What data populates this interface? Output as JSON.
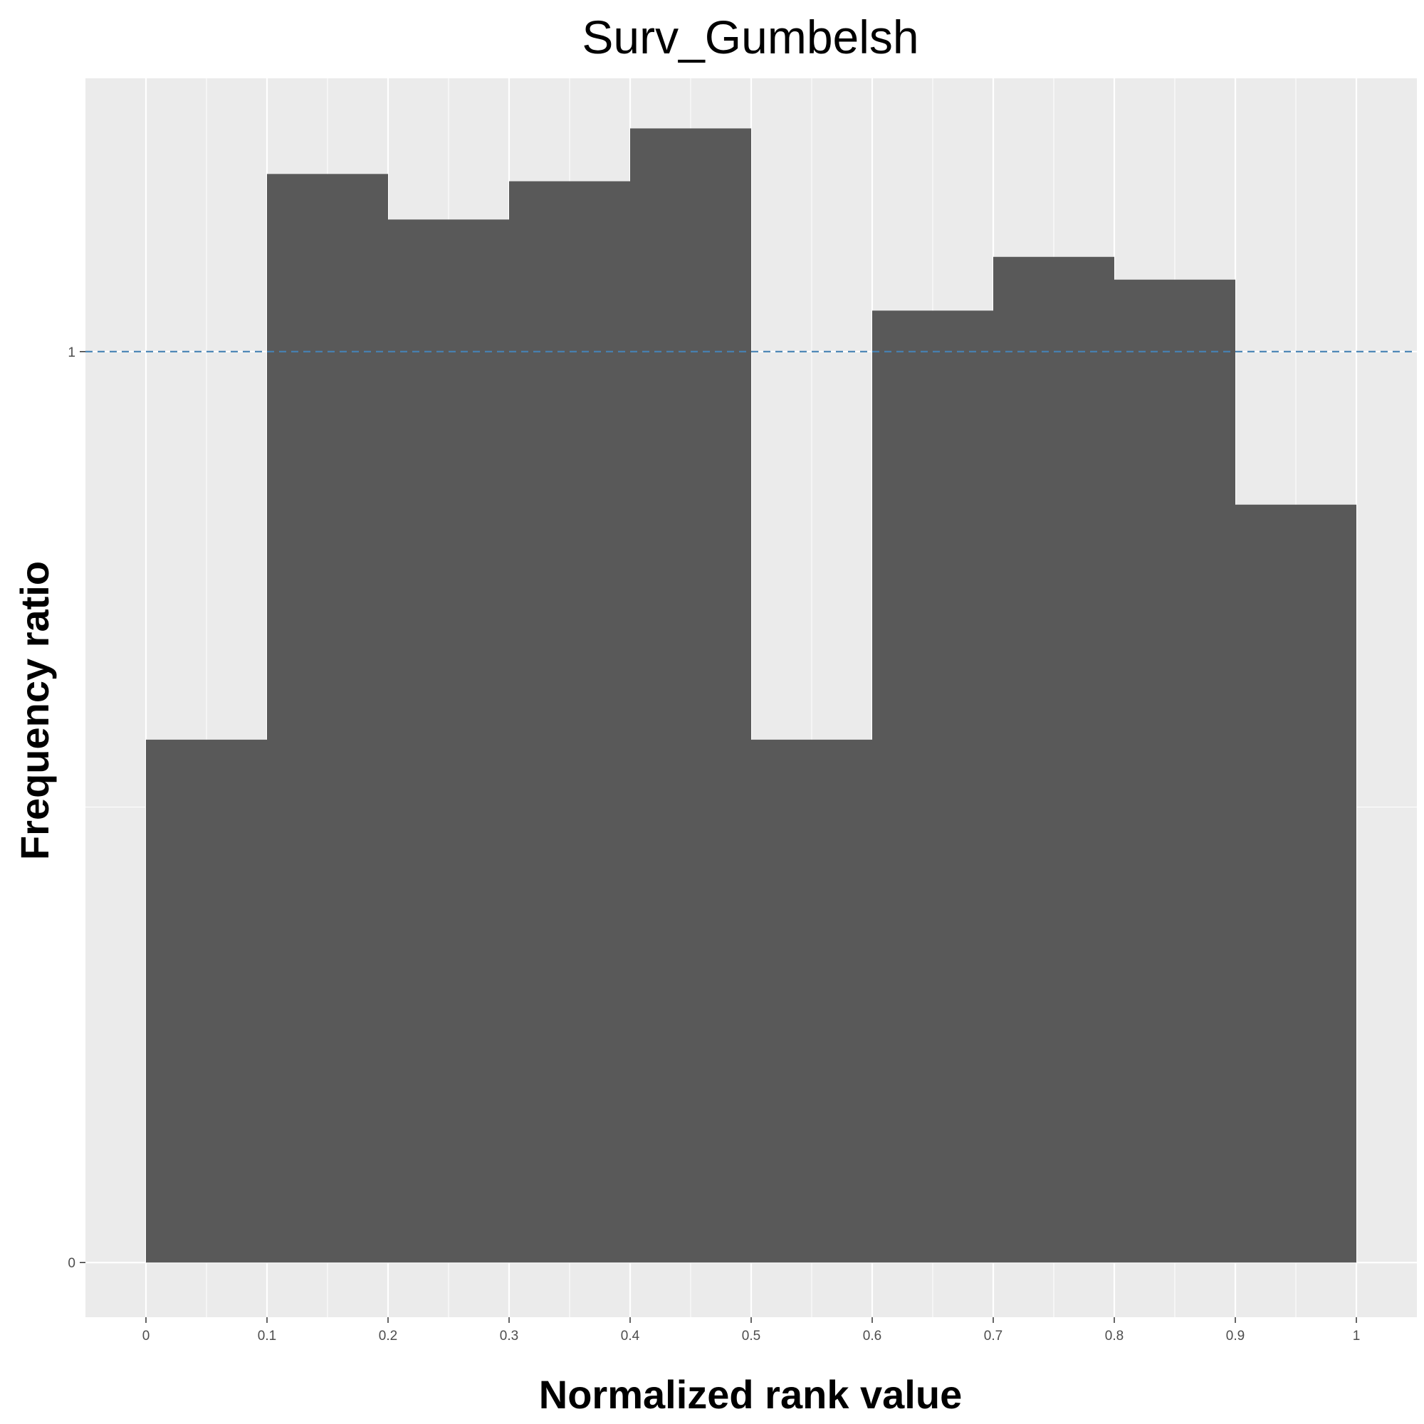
{
  "chart_data": {
    "type": "bar",
    "title": "Surv_Gumbelsh",
    "xlabel": "Normalized rank value",
    "ylabel": "Frequency ratio",
    "bin_edges": [
      0,
      0.1,
      0.2,
      0.3,
      0.4,
      0.5,
      0.6,
      0.7,
      0.8,
      0.9,
      1
    ],
    "values": [
      0.574,
      1.195,
      1.145,
      1.187,
      1.245,
      0.574,
      1.045,
      1.104,
      1.079,
      0.832
    ],
    "xlim": [
      -0.05,
      1.05
    ],
    "ylim": [
      -0.06,
      1.3
    ],
    "x_ticks": [
      0,
      0.1,
      0.2,
      0.3,
      0.4,
      0.5,
      0.6,
      0.7,
      0.8,
      0.9,
      1
    ],
    "x_tick_labels": [
      "0",
      "0.1",
      "0.2",
      "0.3",
      "0.4",
      "0.5",
      "0.6",
      "0.7",
      "0.8",
      "0.9",
      "1"
    ],
    "y_ticks": [
      0,
      1
    ],
    "y_tick_labels": [
      "0",
      "1"
    ],
    "reference_line": {
      "y": 1,
      "style": "dashed",
      "color": "#4682b4"
    },
    "grid": true,
    "colors": {
      "bar": "#595959",
      "panel": "#ebebeb",
      "grid": "#ffffff"
    }
  }
}
